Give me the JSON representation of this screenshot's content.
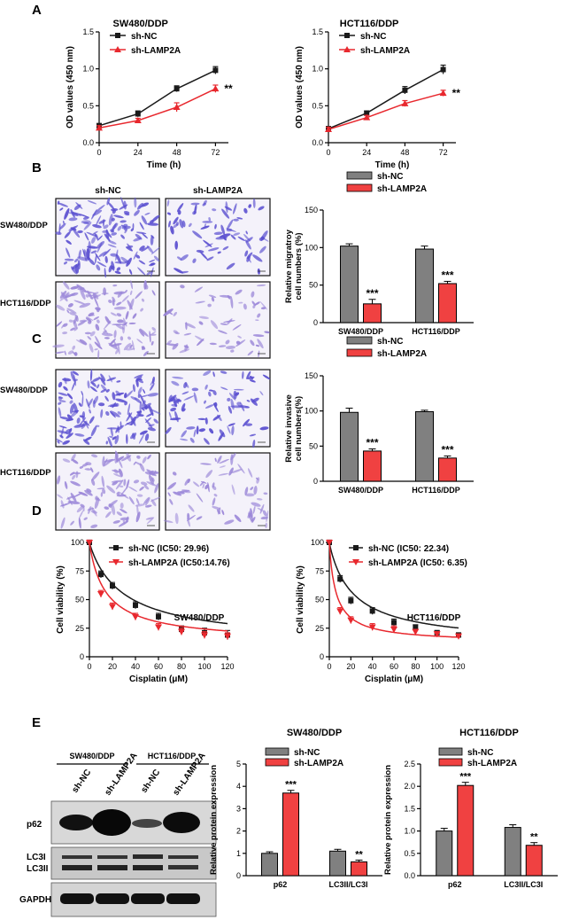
{
  "panels": {
    "A": "A",
    "B": "B",
    "C": "C",
    "D": "D",
    "E": "E"
  },
  "colors": {
    "nc": "#1a1a1a",
    "kd": "#e8282e",
    "bar_nc": "#808080",
    "bar_kd": "#f04141",
    "stain": "#5a4fd0",
    "stain_light": "#9a86d8"
  },
  "micro": {
    "col_labels": [
      "sh-NC",
      "sh-LAMP2A"
    ],
    "row_labels": [
      "SW480/DDP",
      "HCT116/DDP"
    ]
  },
  "western": {
    "groups": [
      "SW480/DDP",
      "HCT116/DDP"
    ],
    "lanes": [
      "sh-NC",
      "sh-LAMP2A",
      "sh-NC",
      "sh-LAMP2A"
    ],
    "bands": [
      "p62",
      "LC3I",
      "LC3II",
      "GAPDH"
    ]
  },
  "chart_data": [
    {
      "id": "A1",
      "type": "line",
      "title": "SW480/DDP",
      "xlabel": "Time (h)",
      "ylabel": "OD values (450 nm)",
      "x": [
        0,
        24,
        48,
        72
      ],
      "xlim": [
        0,
        80
      ],
      "ylim": [
        0,
        1.5
      ],
      "xticks": [
        "0",
        "24",
        "48",
        "72"
      ],
      "yticks": [
        "0.0",
        "0.5",
        "1.0",
        "1.5"
      ],
      "series": [
        {
          "name": "sh-NC",
          "values": [
            0.23,
            0.39,
            0.73,
            0.98
          ],
          "err": [
            0.03,
            0.04,
            0.04,
            0.05
          ]
        },
        {
          "name": "sh-LAMP2A",
          "values": [
            0.2,
            0.3,
            0.48,
            0.73
          ],
          "err": [
            0.03,
            0.03,
            0.06,
            0.05
          ]
        }
      ],
      "annotation": "**",
      "legend": "top-left"
    },
    {
      "id": "A2",
      "type": "line",
      "title": "HCT116/DDP",
      "xlabel": "Time (h)",
      "ylabel": "OD values (450 nm)",
      "x": [
        0,
        24,
        48,
        72
      ],
      "xlim": [
        0,
        80
      ],
      "ylim": [
        0,
        1.5
      ],
      "xticks": [
        "0",
        "24",
        "48",
        "72"
      ],
      "yticks": [
        "0.0",
        "0.5",
        "1.0",
        "1.5"
      ],
      "series": [
        {
          "name": "sh-NC",
          "values": [
            0.19,
            0.4,
            0.71,
            0.99
          ],
          "err": [
            0.03,
            0.03,
            0.05,
            0.06
          ]
        },
        {
          "name": "sh-LAMP2A",
          "values": [
            0.18,
            0.34,
            0.53,
            0.67
          ],
          "err": [
            0.03,
            0.03,
            0.04,
            0.04
          ]
        }
      ],
      "annotation": "**",
      "legend": "top-left"
    },
    {
      "id": "B",
      "type": "bar",
      "ylabel": "Relative migratroy cell numbers (%)",
      "categories": [
        "SW480/DDP",
        "HCT116/DDP"
      ],
      "ylim": [
        0,
        150
      ],
      "yticks": [
        "0",
        "50",
        "100",
        "150"
      ],
      "series": [
        {
          "name": "sh-NC",
          "values": [
            102,
            98
          ],
          "err": [
            3,
            4
          ]
        },
        {
          "name": "sh-LAMP2A",
          "values": [
            25,
            52
          ],
          "err": [
            6,
            3
          ]
        }
      ],
      "annotations": [
        "***",
        "***"
      ],
      "legend": "top-left"
    },
    {
      "id": "C",
      "type": "bar",
      "ylabel": "Relative invasive cell numbers(%)",
      "categories": [
        "SW480/DDP",
        "HCT116/DDP"
      ],
      "ylim": [
        0,
        150
      ],
      "yticks": [
        "0",
        "50",
        "100",
        "150"
      ],
      "series": [
        {
          "name": "sh-NC",
          "values": [
            98,
            99
          ],
          "err": [
            6,
            2
          ]
        },
        {
          "name": "sh-LAMP2A",
          "values": [
            43,
            33
          ],
          "err": [
            3,
            3
          ]
        }
      ],
      "annotations": [
        "***",
        "***"
      ],
      "legend": "top-left"
    },
    {
      "id": "D1",
      "type": "line",
      "title": "SW480/DDP",
      "xlabel": "Cisplatin (μM)",
      "ylabel": "Cell viability (%)",
      "x": [
        0,
        10,
        20,
        40,
        60,
        80,
        100,
        120
      ],
      "xlim": [
        0,
        120
      ],
      "ylim": [
        0,
        100
      ],
      "xticks": [
        "0",
        "20",
        "40",
        "60",
        "80",
        "100",
        "120"
      ],
      "yticks": [
        "0",
        "25",
        "50",
        "75",
        "100"
      ],
      "series": [
        {
          "name": "sh-NC (IC50: 29.96)",
          "ic50": 29.96,
          "values": [
            100,
            72,
            62,
            45,
            35,
            24,
            21,
            19
          ],
          "err": [
            2,
            3,
            3,
            3,
            3,
            3,
            4,
            4
          ]
        },
        {
          "name": "sh-LAMP2A (IC50:14.76)",
          "ic50": 14.76,
          "values": [
            100,
            55,
            44,
            35,
            26,
            22,
            19,
            18
          ],
          "err": [
            2,
            3,
            3,
            3,
            3,
            3,
            3,
            3
          ]
        }
      ],
      "legend": "top-right"
    },
    {
      "id": "D2",
      "type": "line",
      "title": "HCT116/DDP",
      "xlabel": "Cisplatin (μM)",
      "ylabel": "Cell viability (%)",
      "x": [
        0,
        10,
        20,
        40,
        60,
        80,
        100,
        120
      ],
      "xlim": [
        0,
        120
      ],
      "ylim": [
        0,
        100
      ],
      "xticks": [
        "0",
        "20",
        "40",
        "60",
        "80",
        "100",
        "120"
      ],
      "yticks": [
        "0",
        "25",
        "50",
        "75",
        "100"
      ],
      "series": [
        {
          "name": "sh-NC (IC50: 22.34)",
          "ic50": 22.34,
          "values": [
            100,
            68,
            49,
            40,
            30,
            26,
            21,
            19
          ],
          "err": [
            2,
            3,
            3,
            3,
            3,
            2,
            2,
            2
          ]
        },
        {
          "name": "sh-LAMP2A (IC50: 6.35)",
          "ic50": 6.35,
          "values": [
            100,
            40,
            32,
            26,
            24,
            22,
            20,
            18
          ],
          "err": [
            2,
            3,
            3,
            3,
            3,
            2,
            2,
            2
          ]
        }
      ],
      "legend": "top-right"
    },
    {
      "id": "E1",
      "type": "bar",
      "title": "SW480/DDP",
      "ylabel": "Relative protein expression",
      "categories": [
        "p62",
        "LC3II/LC3I"
      ],
      "ylim": [
        0,
        5
      ],
      "yticks": [
        "0",
        "1",
        "2",
        "3",
        "4",
        "5"
      ],
      "series": [
        {
          "name": "sh-NC",
          "values": [
            1.0,
            1.1
          ],
          "err": [
            0.07,
            0.08
          ]
        },
        {
          "name": "sh-LAMP2A",
          "values": [
            3.7,
            0.62
          ],
          "err": [
            0.12,
            0.08
          ]
        }
      ],
      "annotations": [
        "***",
        "**"
      ],
      "legend": "top-left"
    },
    {
      "id": "E2",
      "type": "bar",
      "title": "HCT116/DDP",
      "ylabel": "Relative protein expression",
      "categories": [
        "p62",
        "LC3II/LC3I"
      ],
      "ylim": [
        0,
        2.5
      ],
      "yticks": [
        "0.0",
        "0.5",
        "1.0",
        "1.5",
        "2.0",
        "2.5"
      ],
      "series": [
        {
          "name": "sh-NC",
          "values": [
            1.0,
            1.08
          ],
          "err": [
            0.06,
            0.06
          ]
        },
        {
          "name": "sh-LAMP2A",
          "values": [
            2.02,
            0.68
          ],
          "err": [
            0.07,
            0.06
          ]
        }
      ],
      "annotations": [
        "***",
        "**"
      ],
      "legend": "top-left"
    }
  ]
}
